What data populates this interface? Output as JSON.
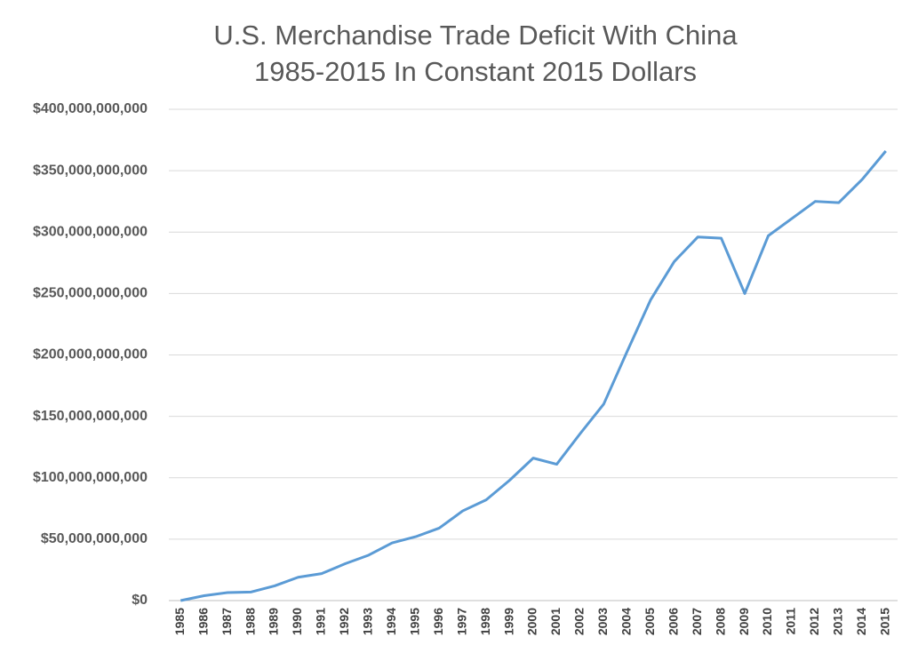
{
  "chart_data": {
    "type": "line",
    "title": "U.S. Merchandise Trade Deficit With China",
    "subtitle": "1985-2015 In Constant 2015 Dollars",
    "categories": [
      "1985",
      "1986",
      "1987",
      "1988",
      "1989",
      "1990",
      "1991",
      "1992",
      "1993",
      "1994",
      "1995",
      "1996",
      "1997",
      "1998",
      "1999",
      "2000",
      "2001",
      "2002",
      "2003",
      "2004",
      "2005",
      "2006",
      "2007",
      "2008",
      "2009",
      "2010",
      "2011",
      "2012",
      "2013",
      "2014",
      "2015"
    ],
    "series": [
      {
        "color": "#5b9bd5",
        "values": [
          0,
          4000000000,
          6500000000,
          7000000000,
          12000000000,
          19000000000,
          22000000000,
          30000000000,
          37000000000,
          47000000000,
          52000000000,
          59000000000,
          73000000000,
          82000000000,
          98000000000,
          116000000000,
          111000000000,
          136000000000,
          160000000000,
          203000000000,
          245000000000,
          276000000000,
          296000000000,
          295000000000,
          250000000000,
          297000000000,
          311000000000,
          325000000000,
          324000000000,
          343000000000,
          366000000000
        ]
      }
    ],
    "ylim": [
      0,
      400000000000
    ],
    "yticks": [
      {
        "value": 0,
        "label": "$0"
      },
      {
        "value": 50000000000,
        "label": "$50,000,000,000"
      },
      {
        "value": 100000000000,
        "label": "$100,000,000,000"
      },
      {
        "value": 150000000000,
        "label": "$150,000,000,000"
      },
      {
        "value": 200000000000,
        "label": "$200,000,000,000"
      },
      {
        "value": 250000000000,
        "label": "$250,000,000,000"
      },
      {
        "value": 300000000000,
        "label": "$300,000,000,000"
      },
      {
        "value": 350000000000,
        "label": "$350,000,000,000"
      },
      {
        "value": 400000000000,
        "label": "$400,000,000,000"
      }
    ],
    "grid": true
  }
}
